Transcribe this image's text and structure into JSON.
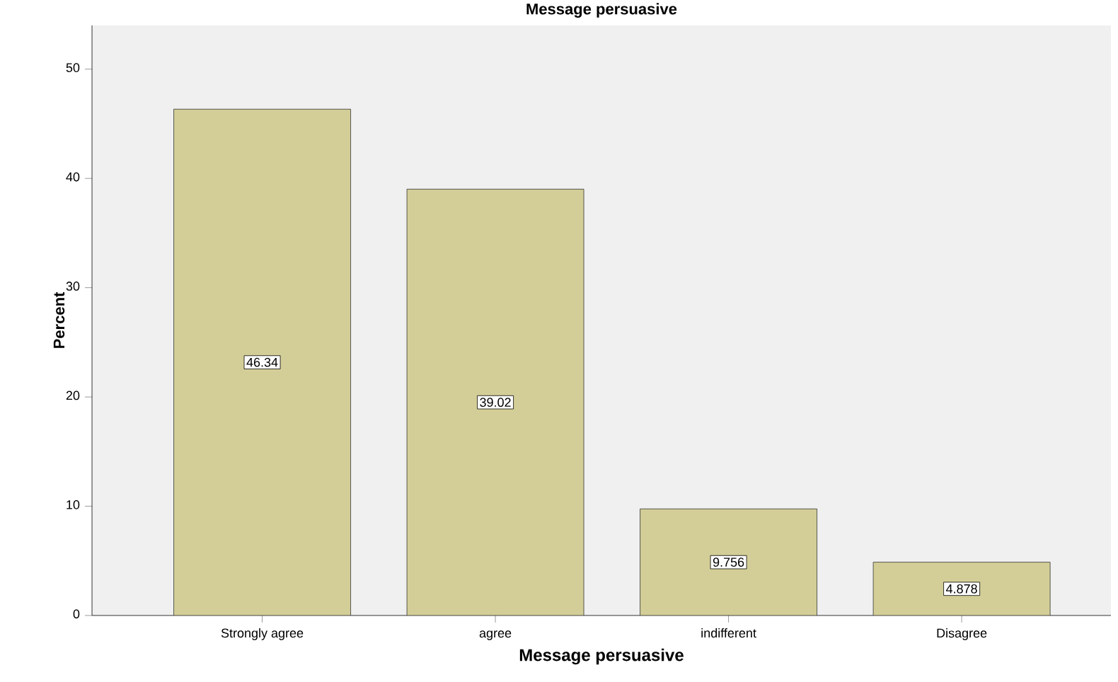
{
  "chart_data": {
    "type": "bar",
    "title": "Message persuasive",
    "xlabel": "Message persuasive",
    "ylabel": "Percent",
    "categories": [
      "Strongly agree",
      "agree",
      "indifferent",
      "Disagree"
    ],
    "values": [
      46.34,
      39.02,
      9.756,
      4.878
    ],
    "color": "#d3ce97",
    "ylim": [
      0,
      54
    ],
    "yticks": [
      0,
      10,
      20,
      30,
      40,
      50
    ],
    "data_labels": true
  }
}
